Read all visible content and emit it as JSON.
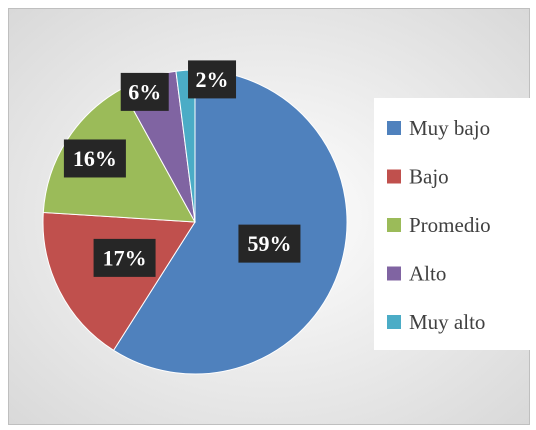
{
  "chart_data": {
    "type": "pie",
    "categories": [
      "Muy bajo",
      "Bajo",
      "Promedio",
      "Alto",
      "Muy alto"
    ],
    "values": [
      59,
      17,
      16,
      6,
      2
    ],
    "value_labels": [
      "59%",
      "17%",
      "16%",
      "6%",
      "2%"
    ],
    "colors": [
      "#4f81bd",
      "#c0504d",
      "#9bbb59",
      "#8064a2",
      "#4bacc6"
    ]
  }
}
